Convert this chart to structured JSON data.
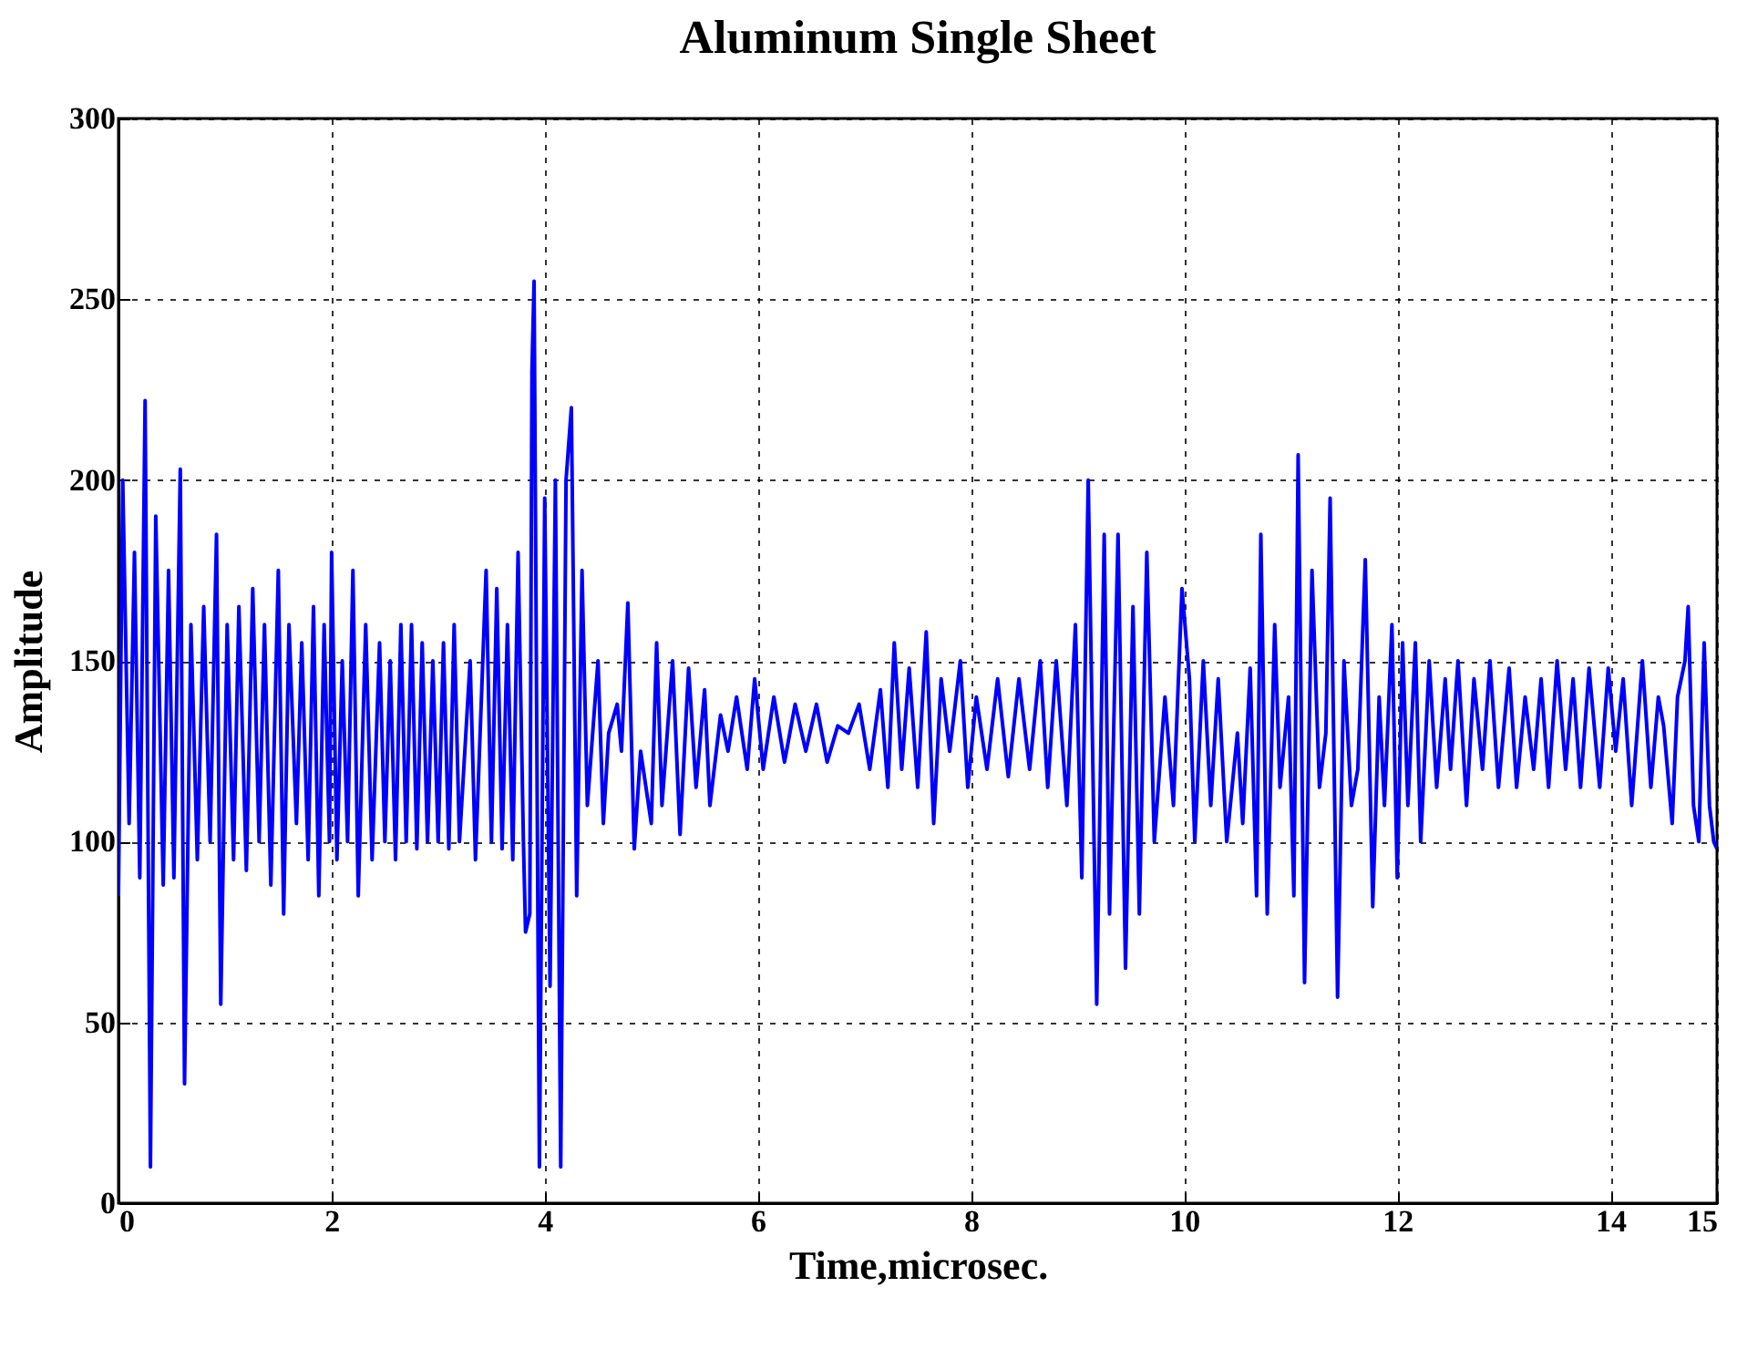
{
  "chart_data": {
    "type": "line",
    "title": "Aluminum Single Sheet",
    "xlabel": "Time,microsec.",
    "ylabel": "Amplitude",
    "x": [
      0,
      0.04,
      0.1,
      0.15,
      0.2,
      0.25,
      0.3,
      0.35,
      0.42,
      0.47,
      0.52,
      0.58,
      0.62,
      0.68,
      0.74,
      0.8,
      0.86,
      0.92,
      0.96,
      1.02,
      1.08,
      1.13,
      1.2,
      1.26,
      1.32,
      1.37,
      1.43,
      1.5,
      1.55,
      1.6,
      1.67,
      1.72,
      1.78,
      1.83,
      1.88,
      1.93,
      1.98,
      2.0,
      2.05,
      2.1,
      2.15,
      2.2,
      2.25,
      2.32,
      2.38,
      2.45,
      2.5,
      2.55,
      2.6,
      2.65,
      2.7,
      2.75,
      2.8,
      2.85,
      2.9,
      2.95,
      3.0,
      3.05,
      3.1,
      3.15,
      3.2,
      3.3,
      3.35,
      3.45,
      3.5,
      3.55,
      3.6,
      3.65,
      3.7,
      3.75,
      3.8,
      3.82,
      3.86,
      3.88,
      3.9,
      3.95,
      4.0,
      4.05,
      4.1,
      4.15,
      4.2,
      4.25,
      4.3,
      4.35,
      4.4,
      4.5,
      4.55,
      4.6,
      4.68,
      4.72,
      4.78,
      4.84,
      4.9,
      5.0,
      5.05,
      5.1,
      5.2,
      5.27,
      5.35,
      5.42,
      5.5,
      5.55,
      5.65,
      5.72,
      5.8,
      5.9,
      5.97,
      6.05,
      6.15,
      6.25,
      6.35,
      6.45,
      6.55,
      6.65,
      6.75,
      6.85,
      6.95,
      7.05,
      7.15,
      7.22,
      7.28,
      7.35,
      7.42,
      7.5,
      7.58,
      7.65,
      7.72,
      7.8,
      7.9,
      7.97,
      8.05,
      8.15,
      8.25,
      8.35,
      8.45,
      8.55,
      8.65,
      8.72,
      8.8,
      8.9,
      8.98,
      9.04,
      9.1,
      9.18,
      9.25,
      9.3,
      9.38,
      9.45,
      9.52,
      9.58,
      9.65,
      9.72,
      9.82,
      9.9,
      9.98,
      10.05,
      10.1,
      10.18,
      10.25,
      10.32,
      10.4,
      10.5,
      10.55,
      10.62,
      10.68,
      10.72,
      10.78,
      10.85,
      10.9,
      10.98,
      11.03,
      11.07,
      11.13,
      11.2,
      11.27,
      11.33,
      11.37,
      11.44,
      11.5,
      11.57,
      11.63,
      11.7,
      11.77,
      11.83,
      11.88,
      11.95,
      12.0,
      12.05,
      12.1,
      12.17,
      12.22,
      12.3,
      12.37,
      12.45,
      12.5,
      12.57,
      12.65,
      12.72,
      12.8,
      12.87,
      12.95,
      13.05,
      13.12,
      13.2,
      13.28,
      13.35,
      13.42,
      13.5,
      13.58,
      13.65,
      13.72,
      13.8,
      13.9,
      13.98,
      14.05,
      14.12,
      14.2,
      14.3,
      14.38,
      14.45,
      14.5,
      14.58,
      14.63,
      14.7,
      14.73,
      14.78,
      14.83,
      14.88,
      14.93,
      14.97,
      15
    ],
    "series": [
      {
        "color": "#0000ff",
        "values": [
          85,
          200,
          105,
          180,
          90,
          222,
          10,
          190,
          88,
          175,
          90,
          203,
          33,
          160,
          95,
          165,
          100,
          185,
          55,
          160,
          95,
          165,
          92,
          170,
          100,
          160,
          88,
          175,
          80,
          160,
          105,
          155,
          95,
          165,
          85,
          160,
          100,
          180,
          95,
          150,
          100,
          175,
          85,
          160,
          95,
          155,
          100,
          150,
          95,
          160,
          100,
          160,
          98,
          155,
          100,
          150,
          100,
          155,
          98,
          160,
          100,
          150,
          95,
          175,
          100,
          170,
          98,
          160,
          95,
          180,
          100,
          75,
          80,
          230,
          255,
          10,
          195,
          60,
          200,
          10,
          200,
          220,
          85,
          175,
          110,
          150,
          105,
          130,
          138,
          125,
          166,
          98,
          125,
          105,
          155,
          110,
          150,
          102,
          148,
          115,
          142,
          110,
          135,
          125,
          140,
          120,
          145,
          120,
          140,
          122,
          138,
          125,
          138,
          122,
          132,
          130,
          138,
          120,
          142,
          115,
          155,
          120,
          148,
          115,
          158,
          105,
          145,
          125,
          150,
          115,
          140,
          120,
          145,
          118,
          145,
          120,
          150,
          115,
          150,
          110,
          160,
          90,
          200,
          55,
          185,
          80,
          185,
          65,
          165,
          80,
          180,
          100,
          140,
          110,
          170,
          145,
          100,
          150,
          110,
          145,
          100,
          130,
          105,
          148,
          85,
          185,
          80,
          160,
          115,
          140,
          85,
          207,
          61,
          175,
          115,
          130,
          195,
          57,
          150,
          110,
          120,
          178,
          82,
          140,
          110,
          160,
          90,
          155,
          110,
          155,
          100,
          150,
          115,
          145,
          120,
          150,
          110,
          145,
          120,
          150,
          115,
          148,
          115,
          140,
          120,
          145,
          115,
          150,
          120,
          145,
          115,
          148,
          115,
          148,
          125,
          145,
          110,
          150,
          115,
          140,
          132,
          105,
          140,
          150,
          165,
          110,
          100,
          155,
          110,
          100,
          98
        ]
      }
    ],
    "xlim": [
      0,
      15
    ],
    "ylim": [
      0,
      300
    ],
    "xticks": [
      0,
      2,
      4,
      6,
      8,
      10,
      12,
      14,
      15
    ],
    "yticks": [
      0,
      50,
      100,
      150,
      200,
      250,
      300
    ],
    "grid": true
  }
}
